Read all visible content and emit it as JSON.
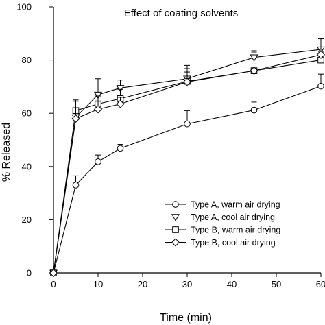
{
  "chart_data": {
    "type": "line",
    "title": "Effect of coating solvents",
    "xlabel": "Time (min)",
    "ylabel": "% Released",
    "xlim": [
      0,
      60
    ],
    "ylim": [
      0,
      100
    ],
    "xticks": [
      0,
      10,
      20,
      30,
      40,
      50,
      60
    ],
    "yticks": [
      0,
      20,
      40,
      60,
      80,
      100
    ],
    "x": [
      0,
      5,
      10,
      15,
      30,
      45,
      60
    ],
    "grid": false,
    "legend_position": "bottom-right",
    "series": [
      {
        "name": "Type A, warm air drying",
        "marker": "circle",
        "values": [
          0,
          33,
          41.8,
          46.8,
          56,
          61.2,
          70.2
        ],
        "error_upper": [
          0,
          3.5,
          2.5,
          1.5,
          5,
          3,
          4.5
        ]
      },
      {
        "name": "Type A, cool air drying",
        "marker": "triangle-down",
        "values": [
          0,
          58.5,
          67,
          69.5,
          73,
          81,
          84
        ],
        "error_upper": [
          0,
          6,
          6,
          3,
          5,
          2.5,
          4
        ]
      },
      {
        "name": "Type B, warm air drying",
        "marker": "square",
        "values": [
          0,
          61,
          63.5,
          65.5,
          72,
          76,
          80
        ],
        "error_upper": [
          0,
          4,
          3,
          3.5,
          3.5,
          7,
          3
        ]
      },
      {
        "name": "Type B, cool air drying",
        "marker": "diamond",
        "values": [
          0,
          58,
          61.5,
          63.5,
          71.8,
          76,
          82
        ],
        "error_upper": [
          0,
          4,
          3,
          2.5,
          5,
          2.5,
          5.5
        ]
      }
    ]
  }
}
